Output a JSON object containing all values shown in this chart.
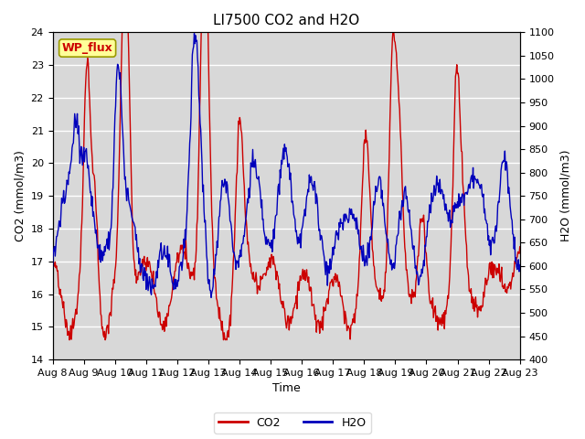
{
  "title": "LI7500 CO2 and H2O",
  "xlabel": "Time",
  "ylabel_left": "CO2 (mmol/m3)",
  "ylabel_right": "H2O (mmol/m3)",
  "co2_ylim": [
    14.0,
    24.0
  ],
  "h2o_ylim": [
    400,
    1100
  ],
  "co2_yticks": [
    14.0,
    15.0,
    16.0,
    17.0,
    18.0,
    19.0,
    20.0,
    21.0,
    22.0,
    23.0,
    24.0
  ],
  "h2o_yticks": [
    400,
    450,
    500,
    550,
    600,
    650,
    700,
    750,
    800,
    850,
    900,
    950,
    1000,
    1050,
    1100
  ],
  "xtick_labels": [
    "Aug 8",
    "Aug 9",
    "Aug 10",
    "Aug 11",
    "Aug 12",
    "Aug 13",
    "Aug 14",
    "Aug 15",
    "Aug 16",
    "Aug 17",
    "Aug 18",
    "Aug 19",
    "Aug 20",
    "Aug 21",
    "Aug 22",
    "Aug 23"
  ],
  "co2_color": "#cc0000",
  "h2o_color": "#0000bb",
  "plot_bg_color": "#d8d8d8",
  "fig_bg_color": "#ffffff",
  "grid_color": "#ffffff",
  "annotation_text": "WP_flux",
  "annotation_bg": "#ffff99",
  "annotation_border": "#999900",
  "annotation_text_color": "#cc0000",
  "title_fontsize": 11,
  "label_fontsize": 9,
  "tick_fontsize": 8,
  "legend_fontsize": 9
}
